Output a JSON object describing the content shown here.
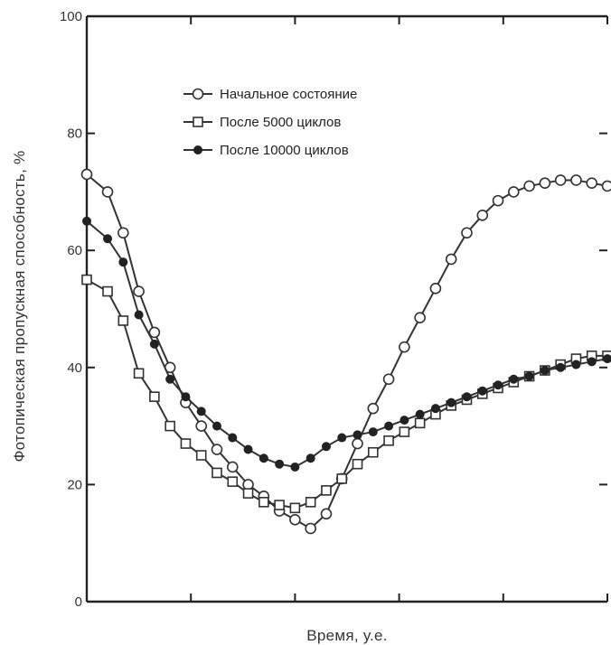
{
  "chart_data": {
    "type": "line",
    "title": "",
    "xlabel": "Время, у.е.",
    "ylabel": "Фотопическая пропускная способность, %",
    "xlim": [
      0,
      100
    ],
    "ylim": [
      0,
      100
    ],
    "yticks": [
      0,
      20,
      40,
      60,
      80,
      100
    ],
    "ytick_labels": [
      "0",
      "20",
      "40",
      "60",
      "80",
      "100"
    ],
    "xticks": [
      0,
      20,
      40,
      60,
      80,
      100
    ],
    "x_tick_labels_shown": false,
    "grid": false,
    "legend_position": "top-center",
    "series": [
      {
        "name": "Начальное состояние",
        "marker": "open-circle",
        "x": [
          0,
          4,
          7,
          10,
          13,
          16,
          19,
          22,
          25,
          28,
          31,
          34,
          37,
          40,
          43,
          46,
          49,
          52,
          55,
          58,
          61,
          64,
          67,
          70,
          73,
          76,
          79,
          82,
          85,
          88,
          91,
          94,
          97,
          100
        ],
        "y": [
          73,
          70,
          63,
          53,
          46,
          40,
          34,
          30,
          26,
          23,
          20,
          18,
          15.5,
          14,
          12.5,
          15,
          21,
          27,
          33,
          38,
          43.5,
          48.5,
          53.5,
          58.5,
          63,
          66,
          68.5,
          70,
          71,
          71.5,
          72,
          72,
          71.5,
          71
        ]
      },
      {
        "name": "После 5000 циклов",
        "marker": "open-square",
        "x": [
          0,
          4,
          7,
          10,
          13,
          16,
          19,
          22,
          25,
          28,
          31,
          34,
          37,
          40,
          43,
          46,
          49,
          52,
          55,
          58,
          61,
          64,
          67,
          70,
          73,
          76,
          79,
          82,
          85,
          88,
          91,
          94,
          97,
          100
        ],
        "y": [
          55,
          53,
          48,
          39,
          35,
          30,
          27,
          25,
          22,
          20.5,
          18.5,
          17,
          16.5,
          16,
          17,
          19,
          21,
          23.5,
          25.5,
          27.5,
          29,
          30.5,
          32,
          33.5,
          34.5,
          35.5,
          36.5,
          37.5,
          38.5,
          39.5,
          40.5,
          41.5,
          42,
          42
        ]
      },
      {
        "name": "После 10000 циклов",
        "marker": "filled-circle",
        "x": [
          0,
          4,
          7,
          10,
          13,
          16,
          19,
          22,
          25,
          28,
          31,
          34,
          37,
          40,
          43,
          46,
          49,
          52,
          55,
          58,
          61,
          64,
          67,
          70,
          73,
          76,
          79,
          82,
          85,
          88,
          91,
          94,
          97,
          100
        ],
        "y": [
          65,
          62,
          58,
          49,
          44,
          38,
          35,
          32.5,
          30,
          28,
          26,
          24.5,
          23.5,
          23,
          24.5,
          26.5,
          28,
          28.5,
          29,
          30,
          31,
          32,
          33,
          34,
          35,
          36,
          37,
          38,
          38.5,
          39.5,
          40,
          40.5,
          41,
          41.5
        ]
      }
    ]
  }
}
